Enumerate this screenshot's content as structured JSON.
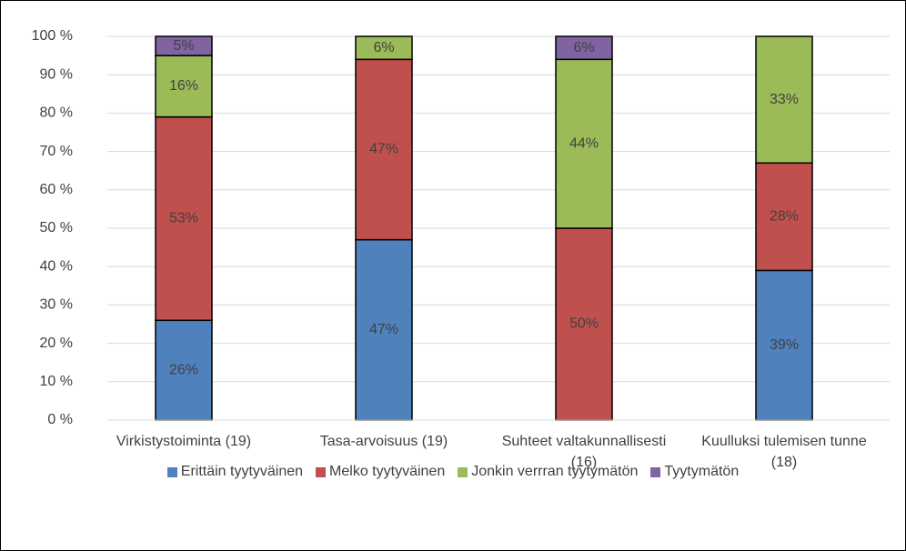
{
  "chart_data": {
    "type": "bar",
    "stacked": true,
    "categories": [
      "Virkistystoiminta (19)",
      "Tasa-arvoisuus (19)",
      "Suhteet valtakunnallisesti (16)",
      "Kuulluksi tulemisen tunne (18)"
    ],
    "series": [
      {
        "name": "Erittäin tyytyväinen",
        "color": "#4f81bd",
        "values": [
          26,
          47,
          null,
          39
        ],
        "value_labels": [
          "26%",
          "47%",
          null,
          "39%"
        ]
      },
      {
        "name": "Melko tyytyväinen",
        "color": "#c0504d",
        "values": [
          53,
          47,
          50,
          28
        ],
        "value_labels": [
          "53%",
          "47%",
          "50%",
          "28%"
        ]
      },
      {
        "name": "Jonkin verrran tyytymätön",
        "color": "#9bbb59",
        "values": [
          16,
          6,
          44,
          33
        ],
        "value_labels": [
          "16%",
          "6%",
          "44%",
          "33%"
        ]
      },
      {
        "name": "Tyytymätön",
        "color": "#8064a2",
        "values": [
          5,
          null,
          6,
          null
        ],
        "value_labels": [
          "5%",
          null,
          "6%",
          null
        ]
      }
    ],
    "ylim": [
      0,
      100
    ],
    "yticks": [
      {
        "value": 0,
        "label": "0 %"
      },
      {
        "value": 10,
        "label": "10 %"
      },
      {
        "value": 20,
        "label": "20 %"
      },
      {
        "value": 30,
        "label": "30 %"
      },
      {
        "value": 40,
        "label": "40 %"
      },
      {
        "value": 50,
        "label": "50 %"
      },
      {
        "value": 60,
        "label": "60 %"
      },
      {
        "value": 70,
        "label": "70 %"
      },
      {
        "value": 80,
        "label": "80 %"
      },
      {
        "value": 90,
        "label": "90 %"
      },
      {
        "value": 100,
        "label": "100 %"
      }
    ],
    "grid": true,
    "legend": "bottom"
  }
}
